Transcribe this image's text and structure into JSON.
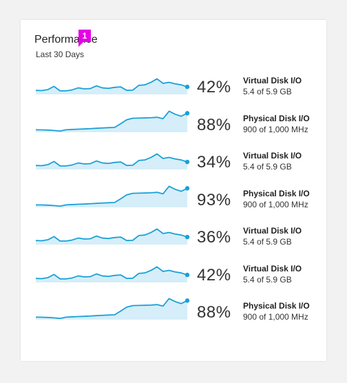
{
  "panel": {
    "title": "Performance",
    "subtitle": "Last 30 Days",
    "badge": "1"
  },
  "colors": {
    "line": "#1aa0d8",
    "fill": "#d5eef9",
    "badge": "#e600e6"
  },
  "rows": [
    {
      "percent": "42%",
      "name": "Virtual Disk I/O",
      "detail": "5.4 of 5.9 GB",
      "level": 0.42,
      "series": "virtual"
    },
    {
      "percent": "88%",
      "name": "Physical Disk I/O",
      "detail": "900 of 1,000 MHz",
      "level": 0.88,
      "series": "physical"
    },
    {
      "percent": "34%",
      "name": "Virtual Disk I/O",
      "detail": "5.4 of 5.9 GB",
      "level": 0.34,
      "series": "virtual"
    },
    {
      "percent": "93%",
      "name": "Physical Disk I/O",
      "detail": "900 of 1,000 MHz",
      "level": 0.93,
      "series": "physical"
    },
    {
      "percent": "36%",
      "name": "Virtual Disk I/O",
      "detail": "5.4 of 5.9 GB",
      "level": 0.36,
      "series": "virtual"
    },
    {
      "percent": "42%",
      "name": "Virtual Disk I/O",
      "detail": "5.4 of 5.9 GB",
      "level": 0.42,
      "series": "virtual"
    },
    {
      "percent": "88%",
      "name": "Physical Disk I/O",
      "detail": "900 of 1,000 MHz",
      "level": 0.88,
      "series": "physical"
    }
  ],
  "chart_data": {
    "type": "line",
    "virtual": [
      0.4,
      0.38,
      0.48,
      0.8,
      0.35,
      0.35,
      0.45,
      0.65,
      0.55,
      0.58,
      0.85,
      0.65,
      0.6,
      0.7,
      0.75,
      0.4,
      0.42,
      0.9,
      0.95,
      1.2,
      1.55,
      1.1,
      1.2,
      1.05,
      0.95,
      0.75
    ],
    "physical": [
      0.25,
      0.24,
      0.22,
      0.18,
      0.12,
      0.25,
      0.28,
      0.31,
      0.33,
      0.36,
      0.4,
      0.43,
      0.46,
      0.48,
      0.85,
      1.25,
      1.4,
      1.42,
      1.43,
      1.45,
      1.5,
      1.35,
      2.1,
      1.8,
      1.6,
      1.9
    ]
  }
}
